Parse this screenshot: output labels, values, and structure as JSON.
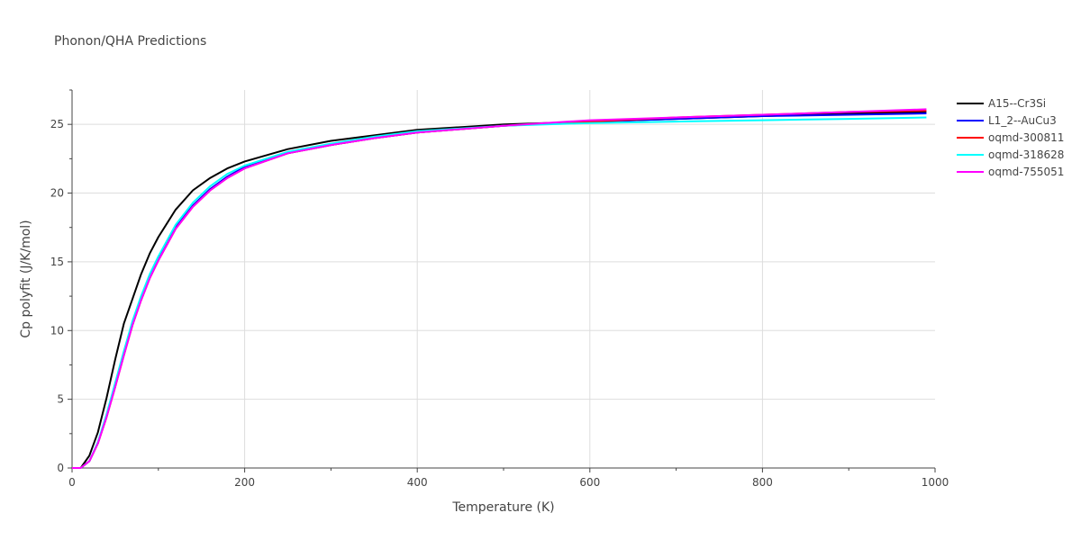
{
  "chart_data": {
    "type": "line",
    "title": "Phonon/QHA Predictions",
    "xlabel": "Temperature (K)",
    "ylabel": "Cp polyfit (J/K/mol)",
    "xlim": [
      0,
      1000
    ],
    "ylim": [
      0,
      27.5
    ],
    "xticks": [
      0,
      200,
      400,
      600,
      800,
      1000
    ],
    "yticks": [
      0,
      5,
      10,
      15,
      20,
      25
    ],
    "grid": true,
    "legend_position": "top-right",
    "x": [
      0,
      10,
      20,
      30,
      40,
      50,
      60,
      70,
      80,
      90,
      100,
      120,
      140,
      160,
      180,
      200,
      250,
      300,
      350,
      400,
      500,
      600,
      700,
      800,
      900,
      990
    ],
    "series": [
      {
        "name": "A15--Cr3Si",
        "color": "#000000",
        "values": [
          0,
          0,
          0.9,
          2.6,
          5.1,
          7.9,
          10.5,
          12.3,
          14.1,
          15.6,
          16.8,
          18.8,
          20.2,
          21.1,
          21.8,
          22.3,
          23.2,
          23.8,
          24.2,
          24.6,
          25.0,
          25.2,
          25.4,
          25.6,
          25.8,
          25.9
        ]
      },
      {
        "name": "L1_2--AuCu3",
        "color": "#0000ff",
        "values": [
          0,
          0,
          0.5,
          1.8,
          3.8,
          6.0,
          8.3,
          10.5,
          12.3,
          13.9,
          15.2,
          17.5,
          19.1,
          20.3,
          21.2,
          21.9,
          22.9,
          23.5,
          24.0,
          24.4,
          24.9,
          25.2,
          25.4,
          25.6,
          25.7,
          25.8
        ]
      },
      {
        "name": "oqmd-300811",
        "color": "#ff0000",
        "values": [
          0,
          0,
          0.5,
          1.8,
          3.7,
          5.9,
          8.2,
          10.4,
          12.2,
          13.8,
          15.1,
          17.4,
          19.0,
          20.2,
          21.1,
          21.8,
          22.9,
          23.5,
          24.0,
          24.4,
          24.9,
          25.2,
          25.5,
          25.7,
          25.9,
          26.0
        ]
      },
      {
        "name": "oqmd-318628",
        "color": "#00ffff",
        "values": [
          0,
          0,
          0.5,
          1.9,
          3.9,
          6.2,
          8.5,
          10.7,
          12.5,
          14.1,
          15.4,
          17.7,
          19.3,
          20.5,
          21.4,
          22.0,
          23.0,
          23.6,
          24.1,
          24.5,
          24.9,
          25.1,
          25.2,
          25.3,
          25.4,
          25.5
        ]
      },
      {
        "name": "oqmd-755051",
        "color": "#ff00ff",
        "values": [
          0,
          0,
          0.5,
          1.8,
          3.7,
          5.9,
          8.2,
          10.4,
          12.2,
          13.8,
          15.1,
          17.4,
          19.0,
          20.2,
          21.1,
          21.8,
          22.9,
          23.5,
          24.0,
          24.4,
          24.9,
          25.3,
          25.5,
          25.7,
          25.9,
          26.1
        ]
      }
    ]
  }
}
